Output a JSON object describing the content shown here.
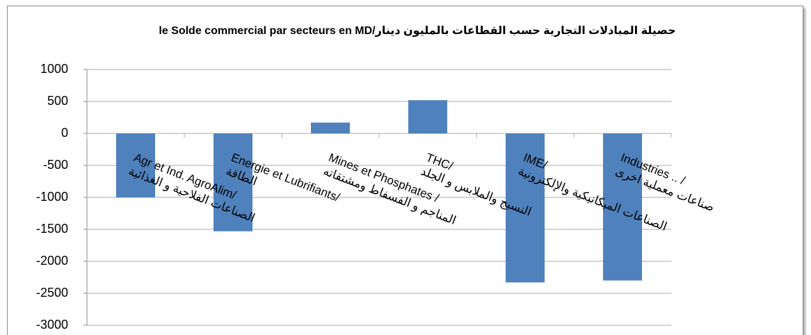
{
  "chart_data": {
    "type": "bar",
    "title": "le Solde commercial par secteurs en MD/حصيلة المبادلات التجارية حسب القطاعات بالمليون دينار",
    "categories": [
      "Agr et Ind. AgroAlim/\nالصناعات الفلاحية و الغذائية",
      "Energie et Lubrifiants/\nالطاقة",
      "Mines et Phosphates /\nالمناجم و الفسفاط ومشتقاته",
      "THC/ \nالنسيج والملابس و الجلد",
      "IME/\nالصناعات الميكانيكية والإلكترونية",
      "Industries .. /\nصناعات معملية اخرى"
    ],
    "values": [
      -1000,
      -1530,
      170,
      520,
      -2330,
      -2300
    ],
    "color": "#4f81bd",
    "ylim": [
      -3000,
      1000
    ],
    "yticks": [
      1000,
      500,
      0,
      -500,
      -1000,
      -1500,
      -2000,
      -2500,
      -3000
    ],
    "grid": true
  }
}
